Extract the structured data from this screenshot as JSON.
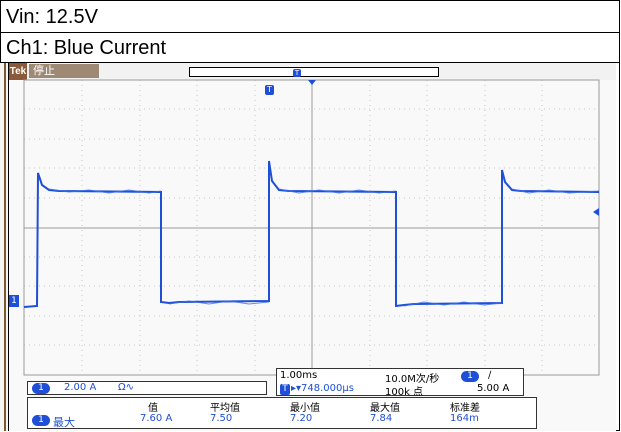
{
  "captions": {
    "line1": "Vin: 12.5V",
    "line2": "Ch1: Blue Current"
  },
  "scope": {
    "brand": "Tek",
    "status": "停止",
    "trigger_badge": "T",
    "channel_marker": "1",
    "channel_box": {
      "badge": "1",
      "scale": "2.00 A",
      "coupling": "Ω∿"
    },
    "timebase_box": {
      "timediv": "1.00ms",
      "trig_badge": "T",
      "position": "▸▾748.000μs",
      "sample_rate": "10.0M次/秒",
      "record_length": "100k 点",
      "trig_channel": "1",
      "trig_slope": "∕",
      "trig_level": "5.00 A"
    },
    "measure_box": {
      "badge": "1",
      "label": "最大",
      "headers": [
        "值",
        "平均值",
        "最小值",
        "最大值",
        "标准差"
      ],
      "values": [
        "7.60 A",
        "7.50",
        "7.20",
        "7.84",
        "164m"
      ]
    },
    "colors": {
      "trace": "#1e4fd6",
      "grid": "#c8c8c8",
      "tek_badge": "#8a5a3a"
    }
  }
}
